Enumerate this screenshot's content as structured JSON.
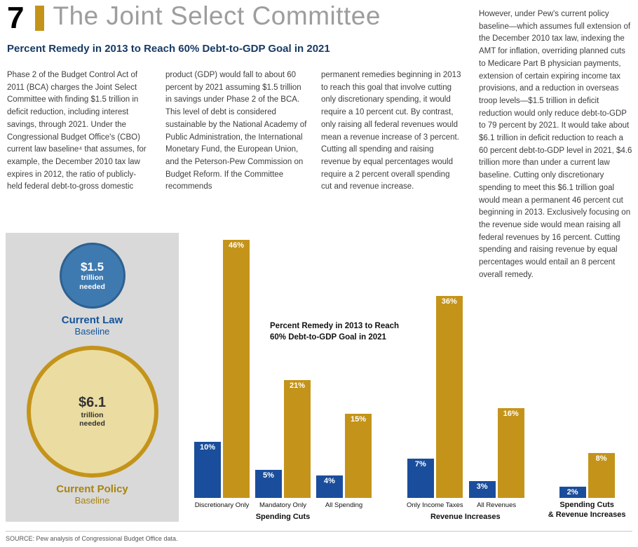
{
  "page": {
    "figure_number": "7",
    "title": "The Joint Select Committee",
    "subtitle": "Percent Remedy in 2013 to Reach 60% Debt-to-GDP Goal in 2021",
    "source": "SOURCE: Pew analysis of Congressional Budget Office data."
  },
  "body": {
    "col1": "Phase 2 of the Budget Control Act of 2011 (BCA) charges the Joint Select Committee with finding $1.5 trillion in deficit reduction, including interest savings, through 2021. Under the Congressional Budget Office's (CBO) current law baseline⁴ that assumes, for example, the December 2010 tax law expires in 2012, the ratio of publicly-held federal debt-to-gross domestic",
    "col2": "product (GDP) would fall to about 60 percent by 2021 assuming $1.5 trillion in savings under Phase 2 of the BCA. This level of debt is considered sustainable by the National Academy of Public Administration, the International Monetary Fund, the European Union, and the Peterson-Pew Commission on Budget Reform. If the Committee recommends",
    "col3": "permanent remedies beginning in 2013 to reach this goal that involve cutting only discretionary spending, it would require a 10 percent cut. By contrast, only raising all federal revenues would mean a revenue increase of 3 percent. Cutting all spending and raising revenue by equal percentages would require a 2 percent overall spending cut and revenue increase.",
    "right_column": "However, under Pew's current policy baseline—which assumes full extension of the December 2010 tax law, indexing the AMT for inflation, overriding planned cuts to Medicare Part B physician payments, extension of certain expiring income tax provisions, and a reduction in overseas troop levels—$1.5 trillion in deficit reduction would only reduce debt-to-GDP to 79 percent by 2021. It would take about $6.1 trillion in deficit reduction to reach a 60 percent debt-to-GDP level in 2021, $4.6 trillion more than under a current law baseline. Cutting only discretionary spending to meet this $6.1 trillion goal would mean a permanent 46 percent cut beginning in 2013. Exclusively focusing on the revenue side would mean raising all federal revenues by 16 percent. Cutting spending and raising revenue by equal percentages would entail an 8 percent overall remedy."
  },
  "baseline_panel": {
    "current_law": {
      "value": "$1.5",
      "line1": "trillion",
      "line2": "needed",
      "label": "Current Law",
      "sublabel": "Baseline"
    },
    "current_policy": {
      "value": "$6.1",
      "line1": "trillion",
      "line2": "needed",
      "label": "Current Policy",
      "sublabel": "Baseline"
    }
  },
  "colors": {
    "gold": "#C4941A",
    "gold_light": "#EBDCA2",
    "blue": "#1A4E9C",
    "navy": "#183A64",
    "blue_circle": "#3E7AB0",
    "panel_gray": "#D9D9D9"
  },
  "chart_data": {
    "type": "bar",
    "title_line1": "Percent Remedy in 2013 to Reach",
    "title_line2": "60% Debt-to-GDP Goal in 2021",
    "unit": "%",
    "ylim": [
      0,
      50
    ],
    "legend_position": "none",
    "grid": false,
    "series": [
      {
        "name": "Current Law Baseline",
        "color": "#1A4E9C"
      },
      {
        "name": "Current Policy Baseline",
        "color": "#C4941A"
      }
    ],
    "sections": [
      {
        "label": "Spending Cuts",
        "groups": [
          {
            "category": "Discretionary Only",
            "values": [
              10,
              46
            ]
          },
          {
            "category": "Mandatory Only",
            "values": [
              5,
              21
            ]
          },
          {
            "category": "All Spending",
            "values": [
              4,
              15
            ]
          }
        ]
      },
      {
        "label": "Revenue Increases",
        "groups": [
          {
            "category": "Only Income Taxes",
            "values": [
              7,
              36
            ]
          },
          {
            "category": "All Revenues",
            "values": [
              3,
              16
            ]
          }
        ]
      },
      {
        "label": "Spending Cuts\n& Revenue Increases",
        "groups": [
          {
            "category": "",
            "values": [
              2,
              8
            ]
          }
        ]
      }
    ]
  }
}
